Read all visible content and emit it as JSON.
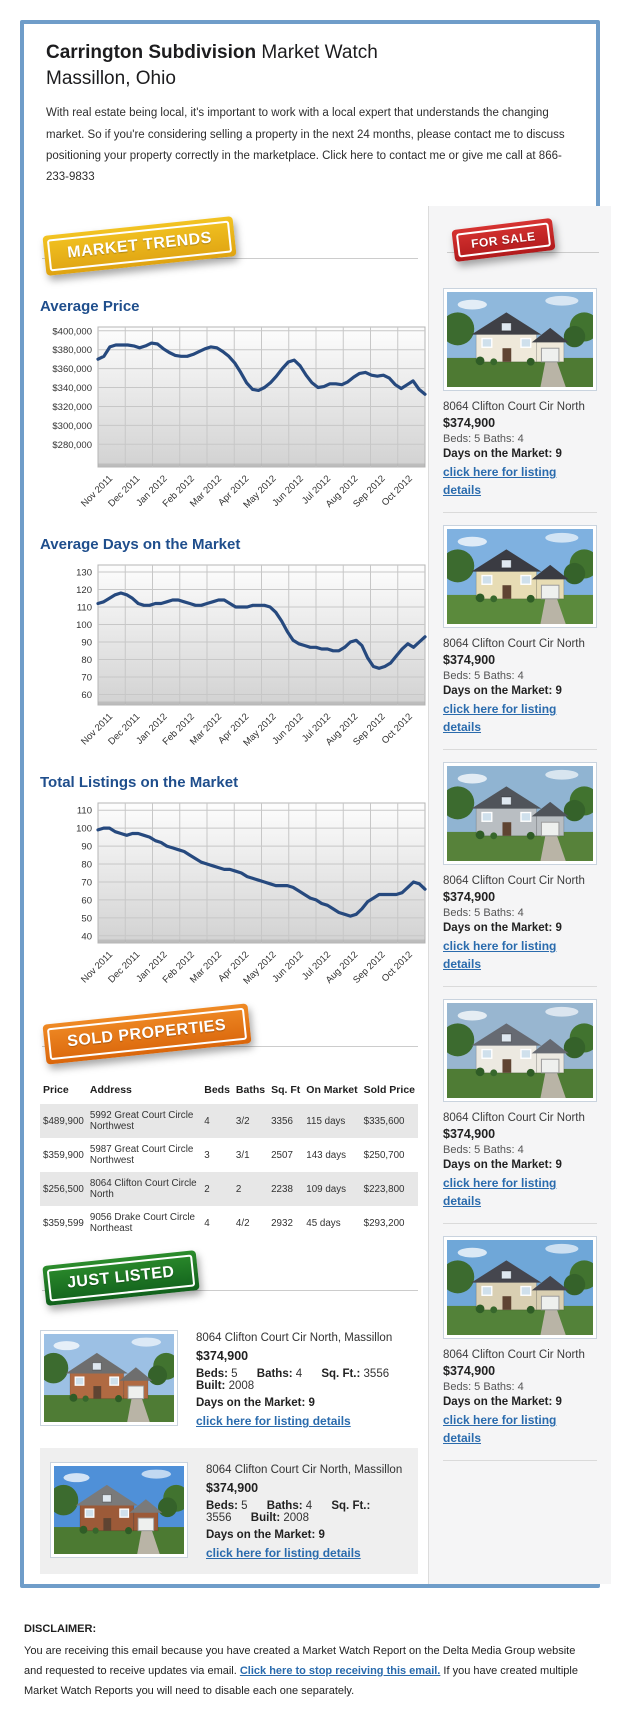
{
  "header": {
    "title_bold": "Carrington Subdivision",
    "title_regular": " Market Watch",
    "subtitle": "Massillon, Ohio",
    "intro": "With real estate being local, it's important to work with a local expert that understands the changing market. So if you're considering selling a property in the next 24 months, please contact me to discuss positioning your property correctly in the marketplace. Click here to contact me or give me call at 866-233-9833"
  },
  "badges": {
    "market_trends": "MARKET TRENDS",
    "for_sale": "FOR SALE",
    "sold_properties": "SOLD PROPERTIES",
    "just_listed": "JUST LISTED"
  },
  "chart_data": [
    {
      "type": "line",
      "title": "Average Price",
      "xlabel": "",
      "ylabel": "",
      "legend": "none",
      "grid": true,
      "x_labels": [
        "Nov 2011",
        "Dec 2011",
        "Jan 2012",
        "Feb 2012",
        "Mar 2012",
        "Apr 2012",
        "May 2012",
        "Jun 2012",
        "Jul 2012",
        "Aug 2012",
        "Sep 2012",
        "Oct 2012"
      ],
      "ylim": [
        256000,
        404000
      ],
      "ytick_values": [
        280000,
        300000,
        320000,
        340000,
        360000,
        380000,
        400000
      ],
      "ytick_labels": [
        "$280,000",
        "$300,000",
        "$320,000",
        "$340,000",
        "$360,000",
        "$380,000",
        "$400,000"
      ],
      "values": [
        370000,
        373000,
        383000,
        385000,
        385000,
        385000,
        384000,
        382000,
        384000,
        387000,
        386000,
        381000,
        377000,
        374000,
        373000,
        373000,
        375000,
        378000,
        381000,
        383000,
        382000,
        378000,
        373000,
        366000,
        356000,
        345000,
        338000,
        337000,
        340000,
        345000,
        352000,
        360000,
        367000,
        369000,
        363000,
        353000,
        345000,
        340000,
        341000,
        344000,
        344000,
        343000,
        346000,
        351000,
        355000,
        356000,
        353000,
        352000,
        353000,
        350000,
        343000,
        339000,
        343000,
        347000,
        338000,
        333000
      ]
    },
    {
      "type": "line",
      "title": "Average Days on the Market",
      "xlabel": "",
      "ylabel": "",
      "legend": "none",
      "grid": true,
      "x_labels": [
        "Nov 2011",
        "Dec 2011",
        "Jan 2012",
        "Feb 2012",
        "Mar 2012",
        "Apr 2012",
        "May 2012",
        "Jun 2012",
        "Jul 2012",
        "Aug 2012",
        "Sep 2012",
        "Oct 2012"
      ],
      "ylim": [
        54,
        134
      ],
      "ytick_values": [
        60,
        70,
        80,
        90,
        100,
        110,
        120,
        130
      ],
      "ytick_labels": [
        "60",
        "70",
        "80",
        "90",
        "100",
        "110",
        "120",
        "130"
      ],
      "values": [
        112,
        113,
        115,
        117,
        118,
        117,
        115,
        112,
        111,
        111,
        112,
        112,
        113,
        114,
        114,
        113,
        112,
        111,
        111,
        112,
        113,
        114,
        114,
        112,
        110,
        110,
        110,
        111,
        111,
        111,
        110,
        107,
        102,
        96,
        91,
        89,
        88,
        87,
        87,
        86,
        86,
        85,
        85,
        87,
        90,
        91,
        88,
        81,
        76,
        75,
        76,
        78,
        82,
        86,
        89,
        87,
        90,
        93
      ]
    },
    {
      "type": "line",
      "title": "Total Listings on the Market",
      "xlabel": "",
      "ylabel": "",
      "legend": "none",
      "grid": true,
      "x_labels": [
        "Nov 2011",
        "Dec 2011",
        "Jan 2012",
        "Feb 2012",
        "Mar 2012",
        "Apr 2012",
        "May 2012",
        "Jun 2012",
        "Jul 2012",
        "Aug 2012",
        "Sep 2012",
        "Oct 2012"
      ],
      "ylim": [
        36,
        114
      ],
      "ytick_values": [
        40,
        50,
        60,
        70,
        80,
        90,
        100,
        110
      ],
      "ytick_labels": [
        "40",
        "50",
        "60",
        "70",
        "80",
        "90",
        "100",
        "110"
      ],
      "values": [
        99,
        100,
        100,
        98,
        97,
        96,
        97,
        97,
        96,
        95,
        93,
        92,
        90,
        89,
        88,
        87,
        85,
        83,
        81,
        80,
        79,
        78,
        77,
        77,
        76,
        75,
        73,
        72,
        71,
        70,
        69,
        68,
        68,
        68,
        67,
        65,
        63,
        61,
        60,
        58,
        57,
        55,
        53,
        52,
        51,
        52,
        55,
        59,
        61,
        63,
        63,
        63,
        63,
        64,
        67,
        70,
        69,
        66
      ]
    }
  ],
  "sidebar": {
    "listings": [
      {
        "address": "8064 Clifton Court Cir North",
        "price": "$374,900",
        "beds_baths": "Beds: 5 Baths: 4",
        "days": "Days on the Market: 9",
        "link": "click here for listing details"
      },
      {
        "address": "8064 Clifton Court Cir North",
        "price": "$374,900",
        "beds_baths": "Beds: 5 Baths: 4",
        "days": "Days on the Market: 9",
        "link": "click here for listing details"
      },
      {
        "address": "8064 Clifton Court Cir North",
        "price": "$374,900",
        "beds_baths": "Beds: 5 Baths: 4",
        "days": "Days on the Market: 9",
        "link": "click here for listing details"
      },
      {
        "address": "8064 Clifton Court Cir North",
        "price": "$374,900",
        "beds_baths": "Beds: 5 Baths: 4",
        "days": "Days on the Market: 9",
        "link": "click here for listing details"
      },
      {
        "address": "8064 Clifton Court Cir North",
        "price": "$374,900",
        "beds_baths": "Beds: 5 Baths: 4",
        "days": "Days on the Market: 9",
        "link": "click here for listing details"
      }
    ]
  },
  "sold": {
    "headers": [
      "Price",
      "Address",
      "Beds",
      "Baths",
      "Sq. Ft",
      "On Market",
      "Sold Price"
    ],
    "rows": [
      [
        "$489,900",
        "5992 Great Court Circle Northwest",
        "4",
        "3/2",
        "3356",
        "115 days",
        "$335,600"
      ],
      [
        "$359,900",
        "5987 Great Court Circle Northwest",
        "3",
        "3/1",
        "2507",
        "143 days",
        "$250,700"
      ],
      [
        "$256,500",
        "8064 Clifton Court Circle North",
        "2",
        "2",
        "2238",
        "109 days",
        "$223,800"
      ],
      [
        "$359,599",
        "9056 Drake Court Circle Northeast",
        "4",
        "4/2",
        "2932",
        "45 days",
        "$293,200"
      ]
    ]
  },
  "just_listed": {
    "listings": [
      {
        "address": "8064 Clifton Court Cir North, Massillon",
        "price": "$374,900",
        "specs": [
          {
            "label": "Beds:",
            "value": "5"
          },
          {
            "label": "Baths:",
            "value": "4"
          },
          {
            "label": "Sq. Ft.:",
            "value": "3556"
          },
          {
            "label": "Built:",
            "value": "2008"
          }
        ],
        "days": "Days on the Market: 9",
        "link": "click here for listing details"
      },
      {
        "address": "8064 Clifton Court Cir North, Massillon",
        "price": "$374,900",
        "specs": [
          {
            "label": "Beds:",
            "value": "5"
          },
          {
            "label": "Baths:",
            "value": "4"
          },
          {
            "label": "Sq. Ft.:",
            "value": "3556"
          },
          {
            "label": "Built:",
            "value": "2008"
          }
        ],
        "days": "Days on the Market: 9",
        "link": "click here for listing details"
      }
    ]
  },
  "disclaimer": {
    "heading": "DISCLAIMER:",
    "text_before": "You are receiving this email because you have created a Market Watch Report on the Delta Media Group website and requested to receive updates via email. ",
    "link": "Click here to stop receiving this email.",
    "text_after": " If you have created multiple Market Watch Reports you will need to disable each one separately."
  },
  "colors": {
    "frame_blue": "#6f9dc9",
    "heading_blue": "#1f4e8c",
    "link_blue": "#2a6bad",
    "chart_line": "#26497e",
    "badge_gold": "#eab41c",
    "badge_red": "#c9282a",
    "badge_orange": "#e2761b",
    "badge_green": "#1d7a24"
  }
}
